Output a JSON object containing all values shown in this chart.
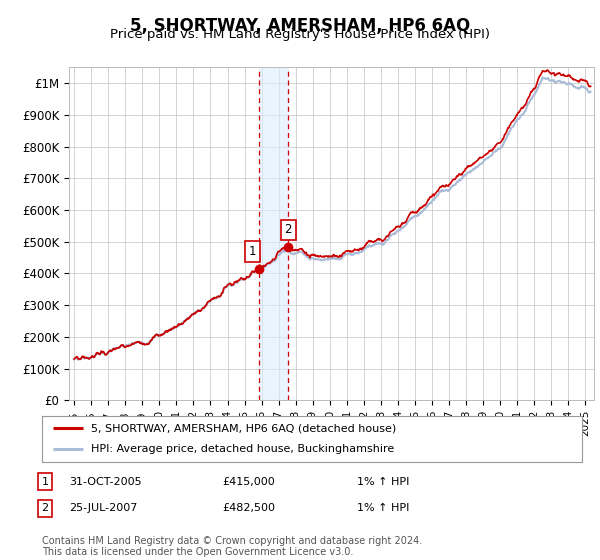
{
  "title": "5, SHORTWAY, AMERSHAM, HP6 6AQ",
  "subtitle": "Price paid vs. HM Land Registry's House Price Index (HPI)",
  "ylabel_ticks": [
    "£0",
    "£100K",
    "£200K",
    "£300K",
    "£400K",
    "£500K",
    "£600K",
    "£700K",
    "£800K",
    "£900K",
    "£1M"
  ],
  "ytick_values": [
    0,
    100000,
    200000,
    300000,
    400000,
    500000,
    600000,
    700000,
    800000,
    900000,
    1000000
  ],
  "ylim": [
    0,
    1050000
  ],
  "xlim_start": 1994.7,
  "xlim_end": 2025.5,
  "xtick_years": [
    1995,
    1996,
    1997,
    1998,
    1999,
    2000,
    2001,
    2002,
    2003,
    2004,
    2005,
    2006,
    2007,
    2008,
    2009,
    2010,
    2011,
    2012,
    2013,
    2014,
    2015,
    2016,
    2017,
    2018,
    2019,
    2020,
    2021,
    2022,
    2023,
    2024,
    2025
  ],
  "hpi_color": "#aabcd8",
  "price_color": "#cc0000",
  "marker_color": "#cc0000",
  "sale1_x": 2005.83,
  "sale1_y": 415000,
  "sale1_label": "1",
  "sale2_x": 2007.56,
  "sale2_y": 482500,
  "sale2_label": "2",
  "vline_color": "#cc0000",
  "shade_color": "#ddeeff",
  "legend_line1": "5, SHORTWAY, AMERSHAM, HP6 6AQ (detached house)",
  "legend_line2": "HPI: Average price, detached house, Buckinghamshire",
  "table_rows": [
    {
      "label": "1",
      "date": "31-OCT-2005",
      "price": "£415,000",
      "hpi": "1% ↑ HPI"
    },
    {
      "label": "2",
      "date": "25-JUL-2007",
      "price": "£482,500",
      "hpi": "1% ↑ HPI"
    }
  ],
  "footer": "Contains HM Land Registry data © Crown copyright and database right 2024.\nThis data is licensed under the Open Government Licence v3.0.",
  "background_color": "#ffffff",
  "grid_color": "#cccccc"
}
